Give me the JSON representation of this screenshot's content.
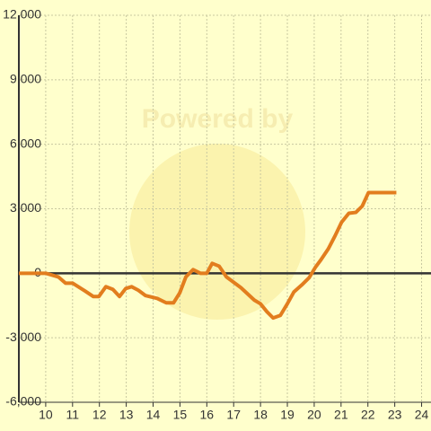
{
  "chart_data": {
    "type": "line",
    "watermark": "Powered by",
    "x": [
      9,
      10,
      10.47,
      10.74,
      11,
      11.47,
      11.77,
      11.98,
      12.24,
      12.5,
      12.75,
      12.98,
      13.2,
      13.45,
      13.72,
      14.15,
      14.49,
      14.76,
      14.99,
      15.22,
      15.49,
      15.76,
      16,
      16.2,
      16.46,
      16.73,
      17,
      17.27,
      17.77,
      18,
      18.24,
      18.47,
      18.74,
      19,
      19.24,
      19.54,
      19.81,
      20.05,
      20.25,
      20.52,
      20.78,
      21.02,
      21.29,
      21.55,
      21.79,
      22.02,
      22.52,
      23.06
    ],
    "series": [
      {
        "color": "#e27d1e",
        "values": [
          0,
          0,
          -170,
          -460,
          -460,
          -830,
          -1080,
          -1080,
          -625,
          -750,
          -1080,
          -710,
          -625,
          -790,
          -1040,
          -1170,
          -1375,
          -1375,
          -920,
          -170,
          170,
          0,
          0,
          460,
          330,
          -170,
          -420,
          -670,
          -1250,
          -1420,
          -1790,
          -2080,
          -1960,
          -1420,
          -875,
          -540,
          -210,
          290,
          625,
          1125,
          1750,
          2375,
          2790,
          2830,
          3125,
          3750,
          3750,
          3750
        ]
      }
    ],
    "xlim": [
      9,
      24.35
    ],
    "xticks": [
      10,
      11,
      12,
      13,
      14,
      15,
      16,
      17,
      18,
      19,
      20,
      21,
      22,
      23,
      24
    ],
    "ylim": [
      -6000,
      12000
    ],
    "yticks": [
      {
        "value": -6000,
        "label": "-6,000"
      },
      {
        "value": -3000,
        "label": "-3,000"
      },
      0,
      {
        "value": 3000,
        "label": "3,000"
      },
      {
        "value": 6000,
        "label": "6,000"
      },
      {
        "value": 9000,
        "label": "9,000"
      },
      {
        "value": 12000,
        "label": "12,000"
      }
    ],
    "grid": true
  }
}
